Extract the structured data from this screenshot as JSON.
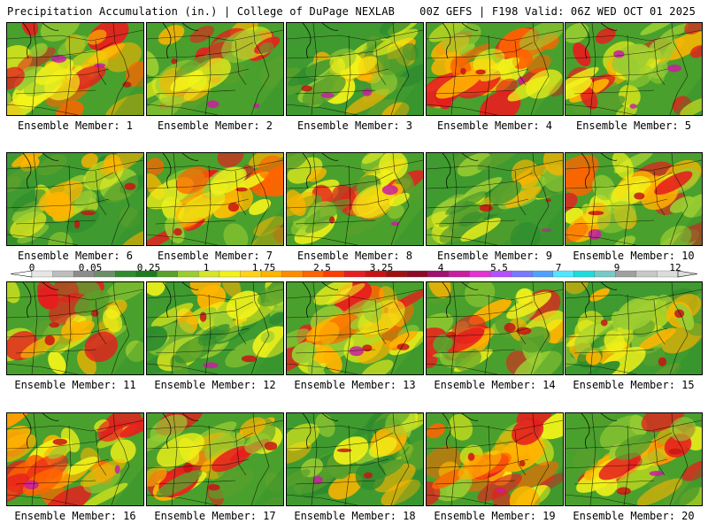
{
  "header": {
    "left": "Precipitation Accumulation (in.) | College of DuPage NEXLAB",
    "right": "00Z GEFS | F198 Valid: 06Z WED OCT 01 2025"
  },
  "colorbar": {
    "labels": [
      "0",
      "0.05",
      "0.25",
      "1",
      "1.75",
      "2.5",
      "3.25",
      "4",
      "5.5",
      "7",
      "9",
      "12"
    ],
    "colors": [
      "#e6e6e6",
      "#bdbdbd",
      "#8c8c8c",
      "#6b8e6b",
      "#2e8b2e",
      "#1e7a1e",
      "#5aa02c",
      "#9acd32",
      "#d4e62a",
      "#f2f21a",
      "#ffd21a",
      "#ffb400",
      "#ff8c00",
      "#ff6400",
      "#ff3c00",
      "#e61e1e",
      "#c81414",
      "#a01010",
      "#8b0a28",
      "#a0106e",
      "#c81ea0",
      "#e632d2",
      "#b450ff",
      "#7878ff",
      "#50a0ff",
      "#50e6ff",
      "#1edcdc",
      "#78c8c8",
      "#a0a0a0",
      "#c8c8c8",
      "#dcdcdc"
    ]
  },
  "members": [
    {
      "label": "Ensemble Member: 1"
    },
    {
      "label": "Ensemble Member: 2"
    },
    {
      "label": "Ensemble Member: 3"
    },
    {
      "label": "Ensemble Member: 4"
    },
    {
      "label": "Ensemble Member: 5"
    },
    {
      "label": "Ensemble Member: 6"
    },
    {
      "label": "Ensemble Member: 7"
    },
    {
      "label": "Ensemble Member: 8"
    },
    {
      "label": "Ensemble Member: 9"
    },
    {
      "label": "Ensemble Member: 10"
    },
    {
      "label": "Ensemble Member: 11"
    },
    {
      "label": "Ensemble Member: 12"
    },
    {
      "label": "Ensemble Member: 13"
    },
    {
      "label": "Ensemble Member: 14"
    },
    {
      "label": "Ensemble Member: 15"
    },
    {
      "label": "Ensemble Member: 16"
    },
    {
      "label": "Ensemble Member: 17"
    },
    {
      "label": "Ensemble Member: 18"
    },
    {
      "label": "Ensemble Member: 19"
    },
    {
      "label": "Ensemble Member: 20"
    }
  ]
}
